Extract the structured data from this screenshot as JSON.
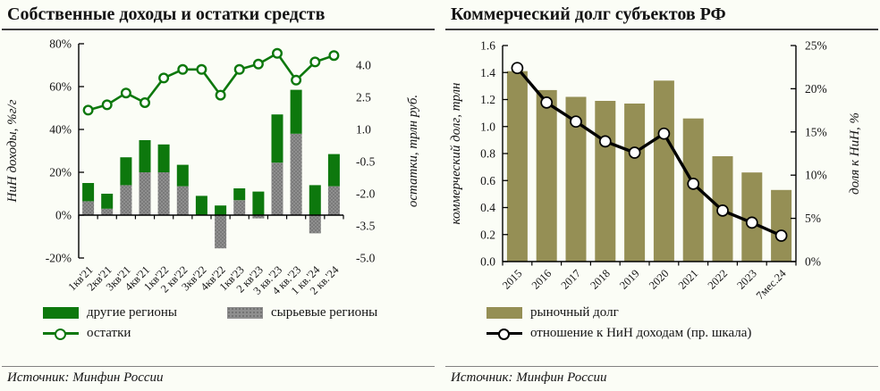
{
  "colors": {
    "green": "#0d780d",
    "gray": "#8f8f8f",
    "gray_dot": "#6a6a6a",
    "olive": "#958f55",
    "black": "#000000"
  },
  "panels": [
    {
      "title": "Собственные доходы и остатки средств",
      "source": "Источник: Минфин России",
      "legend": {
        "other_regions": "другие регионы",
        "resource_regions": "сырьевые регионы",
        "balances": "остатки"
      }
    },
    {
      "title": "Коммерческий долг субъектов РФ",
      "source": "Источник: Минфин России",
      "legend": {
        "market_debt": "рыночный долг",
        "ratio": "отношение к НиН доходам (пр. шкала)"
      }
    }
  ],
  "chart_data": [
    {
      "type": "bar",
      "subtype": "stacked-bars-with-line",
      "title": "Собственные доходы и остатки средств",
      "categories": [
        "1кв'21",
        "2кв'21",
        "3кв'21",
        "4кв'21",
        "1кв'22",
        "2 кв'22",
        "3кв'22",
        "4кв'22",
        "1кв'23",
        "2 кв'23",
        "3 кв.'23",
        "4 кв.'23",
        "1 кв.'24",
        "2 кв.'24"
      ],
      "left_axis": {
        "label": "НиН доходы, %г/г",
        "range": [
          -20,
          80
        ],
        "tick_values": [
          80,
          60,
          40,
          20,
          0,
          -20
        ],
        "tick_labels": [
          "80%",
          "60%",
          "40%",
          "20%",
          "0%",
          "-20%"
        ]
      },
      "right_axis": {
        "label": "остатки, трлн руб.",
        "range": [
          -5.0,
          5.0
        ],
        "tick_values": [
          4.0,
          2.5,
          1.0,
          -0.5,
          -2.0,
          -3.5,
          -5.0
        ],
        "tick_labels": [
          "4.0",
          "2.5",
          "1.0",
          "-0.5",
          "-2.0",
          "-3.5",
          "-5.0"
        ]
      },
      "series": [
        {
          "name": "сырьевые регионы",
          "type": "bar",
          "axis": "left",
          "color": "#8f8f8f",
          "texture": "dots",
          "texture_color": "#6a6a6a",
          "values": [
            6.5,
            3,
            14,
            20,
            20,
            13.5,
            0,
            -15.5,
            7,
            -1.5,
            24.5,
            38,
            -8.5,
            13.5
          ]
        },
        {
          "name": "другие регионы",
          "type": "bar",
          "axis": "left",
          "color": "#0d780d",
          "values": [
            8.5,
            7,
            13,
            15,
            13,
            10,
            9,
            4.5,
            5.5,
            11,
            22.5,
            20.5,
            14,
            15
          ]
        },
        {
          "name": "остатки",
          "type": "line",
          "axis": "right",
          "color": "#0d780d",
          "values": [
            1.9,
            2.15,
            2.7,
            2.25,
            3.4,
            3.8,
            3.8,
            2.6,
            3.8,
            4.05,
            4.55,
            3.3,
            4.15,
            4.45
          ]
        }
      ],
      "legend_position": "bottom",
      "grid": false
    },
    {
      "type": "bar",
      "subtype": "bars-with-line",
      "title": "Коммерческий долг субъектов РФ",
      "categories": [
        "2015",
        "2016",
        "2017",
        "2018",
        "2019",
        "2020",
        "2021",
        "2022",
        "2023",
        "7мес.24"
      ],
      "left_axis": {
        "label": "коммерческий долг, трлн",
        "range": [
          0,
          1.6
        ],
        "tick_values": [
          1.6,
          1.4,
          1.2,
          1.0,
          0.8,
          0.6,
          0.4,
          0.2,
          0.0
        ],
        "tick_labels": [
          "1.6",
          "1.4",
          "1.2",
          "1.0",
          "0.8",
          "0.6",
          "0.4",
          "0.2",
          "0.0"
        ]
      },
      "right_axis": {
        "label": "доля к НиН, %",
        "range": [
          0,
          25
        ],
        "tick_values": [
          25,
          20,
          15,
          10,
          5,
          0
        ],
        "tick_labels": [
          "25%",
          "20%",
          "15%",
          "10%",
          "5%",
          "0%"
        ]
      },
      "series": [
        {
          "name": "рыночный долг",
          "type": "bar",
          "axis": "left",
          "color": "#958f55",
          "values": [
            1.41,
            1.27,
            1.22,
            1.19,
            1.17,
            1.34,
            1.06,
            0.78,
            0.66,
            0.53
          ]
        },
        {
          "name": "отношение к НиН доходам (пр. шкала)",
          "type": "line",
          "axis": "right",
          "color": "#000000",
          "values": [
            22.4,
            18.4,
            16.2,
            13.9,
            12.6,
            14.8,
            9.0,
            5.9,
            4.5,
            3.0
          ]
        }
      ],
      "legend_position": "bottom",
      "grid": false
    }
  ]
}
